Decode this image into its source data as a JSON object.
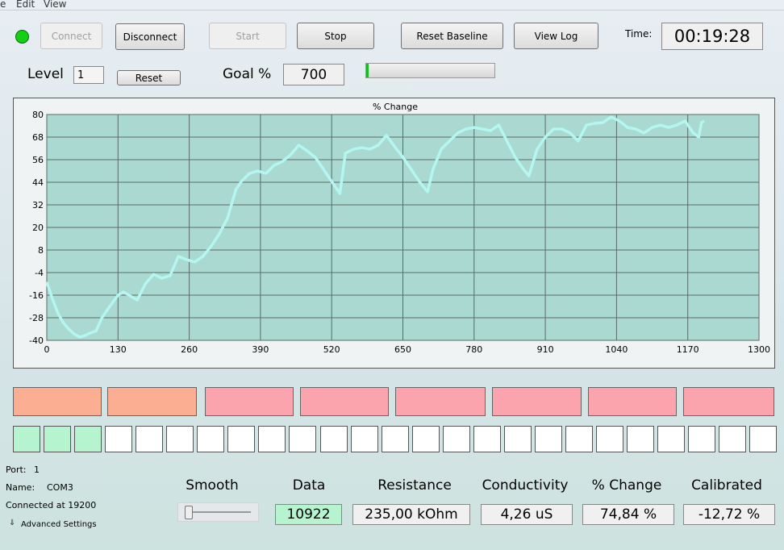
{
  "menu": [
    "e",
    "Edit",
    "View"
  ],
  "toolbar": {
    "buttons": [
      "Connect",
      "Disconnect",
      "Start",
      "Stop",
      "Reset Baseline",
      "View Log"
    ],
    "time_label": "Time:",
    "time": "00:19:28"
  },
  "level": {
    "label": "Level",
    "value": "1",
    "reset": "Reset"
  },
  "goal": {
    "label": "Goal %",
    "value": "700"
  },
  "chart_data": {
    "type": "line",
    "title": "% Change",
    "color": "#b4f6f0",
    "grid": true,
    "x": [
      0,
      10,
      20,
      30,
      40,
      50,
      60,
      70,
      80,
      90,
      100,
      110,
      120,
      130,
      140,
      150,
      165,
      180,
      195,
      210,
      225,
      240,
      255,
      270,
      285,
      300,
      315,
      330,
      345,
      355,
      370,
      385,
      400,
      415,
      430,
      445,
      460,
      475,
      490,
      505,
      520,
      535,
      545,
      560,
      575,
      590,
      605,
      620,
      635,
      650,
      665,
      680,
      695,
      705,
      720,
      735,
      750,
      765,
      780,
      795,
      810,
      825,
      840,
      855,
      870,
      880,
      895,
      910,
      925,
      940,
      955,
      970,
      985,
      1000,
      1015,
      1030,
      1045,
      1060,
      1075,
      1090,
      1105,
      1120,
      1135,
      1150,
      1165,
      1180,
      1190,
      1195,
      1200
    ],
    "values": [
      -9,
      -17.7,
      -25.4,
      -30.6,
      -34,
      -36.6,
      -38.3,
      -37.4,
      -36,
      -35,
      -28.4,
      -24,
      -20,
      -16,
      -14.3,
      -16,
      -18.6,
      -10,
      -4.9,
      -7,
      -5.7,
      4.6,
      2.9,
      1.6,
      4.6,
      10,
      16.6,
      25,
      40,
      44.4,
      48.7,
      50,
      48.7,
      53,
      55,
      58.6,
      63.7,
      60.7,
      57.3,
      50.9,
      44.4,
      38,
      59.4,
      61.6,
      62.4,
      61.6,
      63.7,
      68.9,
      62.9,
      57.3,
      50.9,
      44.4,
      38.9,
      50.9,
      61.6,
      65.9,
      70.2,
      72.3,
      73.1,
      72.3,
      71.4,
      74.4,
      65.9,
      57.3,
      50.9,
      47.4,
      61.6,
      68,
      72.3,
      72.3,
      70.2,
      65.9,
      74.4,
      75.3,
      75.7,
      78.7,
      76.6,
      73.1,
      72.3,
      70.2,
      73.1,
      74.4,
      73.1,
      74.4,
      76.6,
      70.2,
      68,
      75.7,
      76.6
    ],
    "xlim": [
      0,
      1300
    ],
    "xticks": [
      0,
      130,
      260,
      390,
      520,
      650,
      780,
      910,
      1040,
      1170,
      1300
    ],
    "ylim": [
      -40,
      80
    ],
    "yticks": [
      -40,
      -28,
      -16,
      -4,
      8,
      20,
      32,
      44,
      56,
      68,
      80
    ]
  },
  "status": {
    "port_label": "Port:",
    "port": "1",
    "name_label": "Name:",
    "name": "COM3",
    "connected": "Connected at 19200",
    "advanced": "Advanced Settings"
  },
  "smooth": {
    "label": "Smooth"
  },
  "readouts": [
    {
      "label": "Data",
      "value": "10922"
    },
    {
      "label": "Resistance",
      "value": "235,00 kOhm"
    },
    {
      "label": "Conductivity",
      "value": "4,26 uS"
    },
    {
      "label": "% Change",
      "value": "74,84 %"
    },
    {
      "label": "Calibrated",
      "value": "-12,72 %"
    }
  ]
}
